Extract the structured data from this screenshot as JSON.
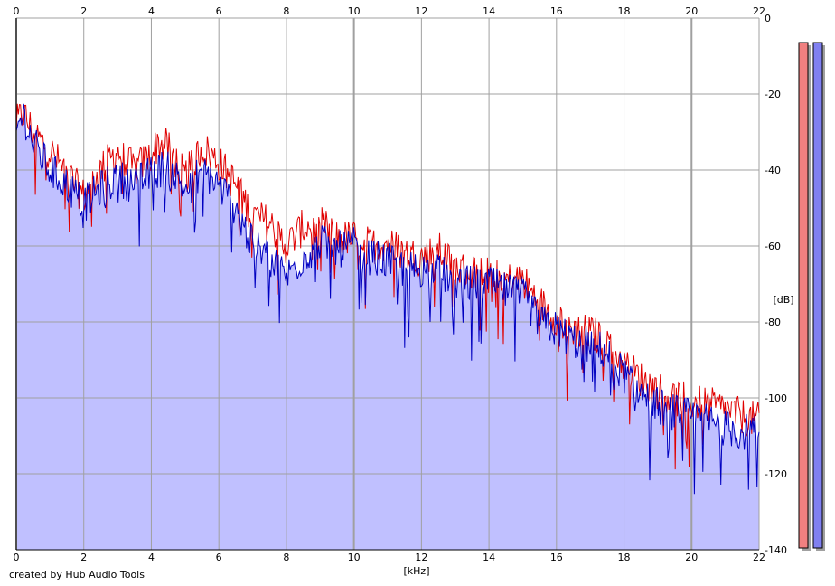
{
  "chart_data": {
    "type": "area",
    "xlabel": "[kHz]",
    "ylabel": "[dB]",
    "xlim": [
      0,
      22
    ],
    "ylim": [
      -140,
      0
    ],
    "x_ticks": [
      0,
      2,
      4,
      6,
      8,
      10,
      12,
      14,
      16,
      18,
      20,
      22
    ],
    "y_ticks": [
      0,
      -20,
      -40,
      -60,
      -80,
      -100,
      -120,
      -140
    ],
    "grid": true,
    "x_tick_position": "top-and-bottom",
    "y_tick_position": "right",
    "series": [
      {
        "color": "#e00000",
        "x": [
          0,
          0.2,
          0.5,
          1,
          1.5,
          2,
          2.5,
          3,
          3.5,
          4,
          4.2,
          4.5,
          5,
          5.5,
          6,
          6.5,
          7,
          7.5,
          8,
          8.5,
          9,
          9.5,
          10,
          10.5,
          11,
          11.5,
          12,
          12.5,
          13,
          13.5,
          14,
          14.5,
          15,
          15.5,
          16,
          16.5,
          17,
          17.5,
          18,
          18.5,
          19,
          19.5,
          20,
          20.5,
          21,
          21.5,
          22
        ],
        "values": [
          -28,
          -25,
          -30,
          -35,
          -41,
          -47,
          -40,
          -35,
          -40,
          -36,
          -33,
          -34,
          -42,
          -34,
          -38,
          -44,
          -52,
          -54,
          -60,
          -55,
          -54,
          -58,
          -58,
          -60,
          -59,
          -62,
          -63,
          -61,
          -66,
          -67,
          -65,
          -69,
          -69,
          -75,
          -79,
          -82,
          -83,
          -85,
          -91,
          -95,
          -98,
          -100,
          -101,
          -102,
          -103,
          -105,
          -106
        ]
      },
      {
        "color": "#0000c0",
        "x": [
          0,
          0.2,
          0.5,
          1,
          1.5,
          2,
          2.5,
          3,
          3.5,
          4,
          4.2,
          4.5,
          5,
          5.5,
          6,
          6.5,
          7,
          7.5,
          8,
          8.5,
          9,
          9.5,
          10,
          10.5,
          11,
          11.5,
          12,
          12.5,
          13,
          13.5,
          14,
          14.5,
          15,
          15.5,
          16,
          16.5,
          17,
          17.5,
          18,
          18.5,
          19,
          19.5,
          20,
          20.5,
          21,
          21.5,
          22
        ],
        "values": [
          -30,
          -25,
          -33,
          -40,
          -44,
          -49,
          -45,
          -42,
          -44,
          -41,
          -40,
          -39,
          -45,
          -40,
          -44,
          -50,
          -60,
          -63,
          -68,
          -63,
          -59,
          -61,
          -60,
          -63,
          -64,
          -66,
          -66,
          -67,
          -69,
          -70,
          -70,
          -72,
          -73,
          -80,
          -82,
          -85,
          -86,
          -88,
          -94,
          -99,
          -102,
          -104,
          -105,
          -106,
          -108,
          -109,
          -109
        ]
      }
    ]
  },
  "level_meters": [
    {
      "color": "#f08080",
      "level": 1.0
    },
    {
      "color": "#8080f0",
      "level": 1.0
    }
  ],
  "colors": {
    "fill": "#c0c0ff",
    "grid": "#a0a0a0",
    "axis": "#000000"
  },
  "credit": "created by Hub Audio Tools"
}
